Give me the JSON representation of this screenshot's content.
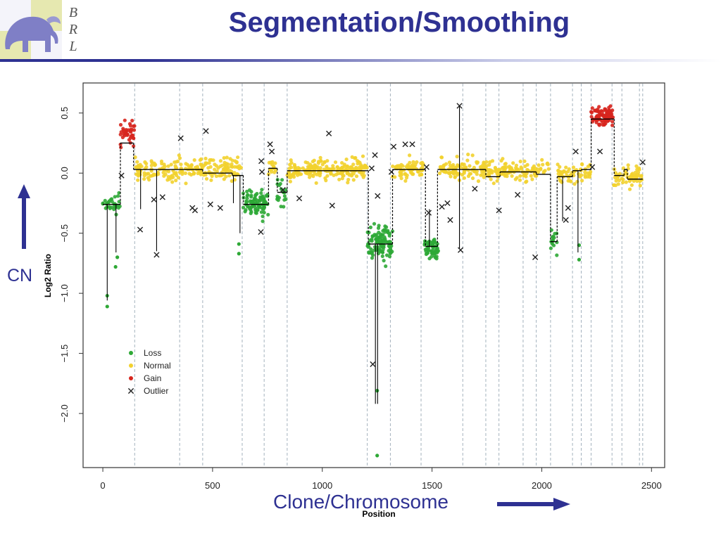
{
  "slide": {
    "title": "Segmentation/Smoothing",
    "logo_text": [
      "B",
      "R",
      "L"
    ],
    "cn_label": "CN",
    "clone_label": "Clone/Chromosome",
    "accent_color": "#2e3192"
  },
  "chart_data": {
    "type": "scatter",
    "xlabel": "Position",
    "ylabel": "Log2 Ratio",
    "xlim": [
      -90,
      2560
    ],
    "ylim": [
      -2.45,
      0.75
    ],
    "xticks": [
      0,
      500,
      1000,
      1500,
      2000,
      2500
    ],
    "yticks": [
      0.5,
      0.0,
      -0.5,
      -1.0,
      -1.5,
      -2.0
    ],
    "xtick_labels": [
      "0",
      "500",
      "1000",
      "1500",
      "2000",
      "2500"
    ],
    "ytick_labels": [
      "0.5",
      "0.0",
      "−0.5",
      "−1.0",
      "−1.5",
      "−2.0"
    ],
    "grid": "vertical dashed chromosome boundaries",
    "legend": {
      "placement": "lower-left",
      "entries": [
        {
          "label": "Loss",
          "color": "#2ea836",
          "marker": "dot"
        },
        {
          "label": "Normal",
          "color": "#f2d12e",
          "marker": "dot"
        },
        {
          "label": "Gain",
          "color": "#d7261e",
          "marker": "dot"
        },
        {
          "label": "Outlier",
          "color": "#222222",
          "marker": "x"
        }
      ]
    },
    "boundaries": [
      145,
      350,
      455,
      635,
      735,
      840,
      1205,
      1310,
      1450,
      1640,
      1745,
      1805,
      1915,
      1975,
      2040,
      2140,
      2180,
      2225,
      2320,
      2365,
      2445,
      2460
    ],
    "segments": [
      {
        "x0": 0,
        "x1": 80,
        "y": -0.26
      },
      {
        "x0": 80,
        "x1": 140,
        "y": 0.25
      },
      {
        "x0": 140,
        "x1": 455,
        "y": 0.03
      },
      {
        "x0": 455,
        "x1": 590,
        "y": 0.0
      },
      {
        "x0": 590,
        "x1": 640,
        "y": -0.02
      },
      {
        "x0": 640,
        "x1": 755,
        "y": -0.26
      },
      {
        "x0": 755,
        "x1": 795,
        "y": 0.04
      },
      {
        "x0": 795,
        "x1": 840,
        "y": -0.16
      },
      {
        "x0": 840,
        "x1": 1210,
        "y": 0.02
      },
      {
        "x0": 1210,
        "x1": 1320,
        "y": -0.59
      },
      {
        "x0": 1320,
        "x1": 1470,
        "y": 0.03
      },
      {
        "x0": 1470,
        "x1": 1525,
        "y": -0.61
      },
      {
        "x0": 1525,
        "x1": 1745,
        "y": 0.03
      },
      {
        "x0": 1745,
        "x1": 1810,
        "y": -0.03
      },
      {
        "x0": 1810,
        "x1": 1975,
        "y": 0.01
      },
      {
        "x0": 1975,
        "x1": 2040,
        "y": -0.01
      },
      {
        "x0": 2040,
        "x1": 2070,
        "y": -0.57
      },
      {
        "x0": 2070,
        "x1": 2140,
        "y": -0.03
      },
      {
        "x0": 2140,
        "x1": 2180,
        "y": 0.02
      },
      {
        "x0": 2180,
        "x1": 2225,
        "y": 0.03
      },
      {
        "x0": 2225,
        "x1": 2330,
        "y": 0.45
      },
      {
        "x0": 2330,
        "x1": 2375,
        "y": -0.02
      },
      {
        "x0": 2375,
        "x1": 2390,
        "y": 0.03
      },
      {
        "x0": 2390,
        "x1": 2460,
        "y": -0.05
      }
    ],
    "spikes": [
      {
        "x": 20,
        "y0": -0.26,
        "y1": -1.06
      },
      {
        "x": 60,
        "y0": -0.26,
        "y1": -0.66
      },
      {
        "x": 172,
        "y0": 0.03,
        "y1": -0.3
      },
      {
        "x": 245,
        "y0": 0.03,
        "y1": -0.65
      },
      {
        "x": 595,
        "y0": -0.02,
        "y1": -0.25
      },
      {
        "x": 625,
        "y0": -0.02,
        "y1": -0.5
      },
      {
        "x": 1242,
        "y0": -0.59,
        "y1": -1.92
      },
      {
        "x": 1252,
        "y0": -0.59,
        "y1": -1.92
      },
      {
        "x": 1488,
        "y0": -0.61,
        "y1": -0.3
      },
      {
        "x": 1625,
        "y0": 0.03,
        "y1": 0.56
      },
      {
        "x": 1625,
        "y0": 0.03,
        "y1": -0.63
      },
      {
        "x": 2095,
        "y0": -0.03,
        "y1": -0.4
      },
      {
        "x": 2165,
        "y0": 0.02,
        "y1": -0.66
      }
    ],
    "regions": [
      {
        "class": "Loss",
        "x0": 0,
        "x1": 80,
        "mean": -0.26,
        "sd": 0.05,
        "n": 30
      },
      {
        "class": "Gain",
        "x0": 80,
        "x1": 145,
        "mean": 0.33,
        "sd": 0.06,
        "n": 40
      },
      {
        "class": "Normal",
        "x0": 145,
        "x1": 630,
        "mean": 0.03,
        "sd": 0.06,
        "n": 220
      },
      {
        "class": "Loss",
        "x0": 640,
        "x1": 755,
        "mean": -0.26,
        "sd": 0.08,
        "n": 90
      },
      {
        "class": "Normal",
        "x0": 755,
        "x1": 790,
        "mean": 0.04,
        "sd": 0.05,
        "n": 15
      },
      {
        "class": "Loss",
        "x0": 790,
        "x1": 835,
        "mean": -0.14,
        "sd": 0.08,
        "n": 20
      },
      {
        "class": "Normal",
        "x0": 840,
        "x1": 1205,
        "mean": 0.03,
        "sd": 0.06,
        "n": 200
      },
      {
        "class": "Loss",
        "x0": 1205,
        "x1": 1320,
        "mean": -0.58,
        "sd": 0.1,
        "n": 110
      },
      {
        "class": "Normal",
        "x0": 1320,
        "x1": 1460,
        "mean": 0.03,
        "sd": 0.06,
        "n": 70
      },
      {
        "class": "Loss",
        "x0": 1465,
        "x1": 1530,
        "mean": -0.62,
        "sd": 0.06,
        "n": 60
      },
      {
        "class": "Normal",
        "x0": 1530,
        "x1": 2035,
        "mean": 0.02,
        "sd": 0.06,
        "n": 220
      },
      {
        "class": "Loss",
        "x0": 2040,
        "x1": 2070,
        "mean": -0.57,
        "sd": 0.08,
        "n": 16
      },
      {
        "class": "Normal",
        "x0": 2070,
        "x1": 2225,
        "mean": 0.0,
        "sd": 0.05,
        "n": 60
      },
      {
        "class": "Gain",
        "x0": 2225,
        "x1": 2325,
        "mean": 0.48,
        "sd": 0.06,
        "n": 100
      },
      {
        "class": "Normal",
        "x0": 2325,
        "x1": 2460,
        "mean": -0.03,
        "sd": 0.06,
        "n": 60
      }
    ],
    "loss_points": [
      {
        "x": 20,
        "y": -1.11
      },
      {
        "x": 20,
        "y": -1.02
      },
      {
        "x": 58,
        "y": -0.78
      },
      {
        "x": 66,
        "y": -0.7
      },
      {
        "x": 620,
        "y": -0.67
      },
      {
        "x": 620,
        "y": -0.59
      },
      {
        "x": 1250,
        "y": -1.81
      },
      {
        "x": 1250,
        "y": -2.35
      },
      {
        "x": 2170,
        "y": -0.72
      },
      {
        "x": 2170,
        "y": -0.6
      }
    ],
    "outliers": [
      {
        "x": 85,
        "y": -0.02
      },
      {
        "x": 170,
        "y": -0.47
      },
      {
        "x": 233,
        "y": -0.22
      },
      {
        "x": 245,
        "y": -0.68
      },
      {
        "x": 272,
        "y": -0.2
      },
      {
        "x": 355,
        "y": 0.29
      },
      {
        "x": 408,
        "y": -0.29
      },
      {
        "x": 420,
        "y": -0.31
      },
      {
        "x": 470,
        "y": 0.35
      },
      {
        "x": 490,
        "y": -0.26
      },
      {
        "x": 535,
        "y": -0.29
      },
      {
        "x": 720,
        "y": -0.49
      },
      {
        "x": 722,
        "y": 0.1
      },
      {
        "x": 725,
        "y": 0.01
      },
      {
        "x": 762,
        "y": 0.24
      },
      {
        "x": 770,
        "y": 0.18
      },
      {
        "x": 820,
        "y": -0.14
      },
      {
        "x": 895,
        "y": -0.21
      },
      {
        "x": 1030,
        "y": 0.33
      },
      {
        "x": 1045,
        "y": -0.27
      },
      {
        "x": 1225,
        "y": 0.04
      },
      {
        "x": 1230,
        "y": -1.59
      },
      {
        "x": 1240,
        "y": 0.15
      },
      {
        "x": 1252,
        "y": -0.19
      },
      {
        "x": 1315,
        "y": 0.01
      },
      {
        "x": 1325,
        "y": 0.22
      },
      {
        "x": 1378,
        "y": 0.24
      },
      {
        "x": 1410,
        "y": 0.24
      },
      {
        "x": 1475,
        "y": 0.05
      },
      {
        "x": 1485,
        "y": -0.33
      },
      {
        "x": 1545,
        "y": -0.28
      },
      {
        "x": 1570,
        "y": -0.25
      },
      {
        "x": 1583,
        "y": -0.39
      },
      {
        "x": 1625,
        "y": 0.56
      },
      {
        "x": 1630,
        "y": -0.64
      },
      {
        "x": 1695,
        "y": -0.13
      },
      {
        "x": 1805,
        "y": -0.31
      },
      {
        "x": 1890,
        "y": -0.18
      },
      {
        "x": 1970,
        "y": -0.7
      },
      {
        "x": 2110,
        "y": -0.39
      },
      {
        "x": 2120,
        "y": -0.29
      },
      {
        "x": 2155,
        "y": 0.18
      },
      {
        "x": 2230,
        "y": 0.05
      },
      {
        "x": 2265,
        "y": 0.18
      },
      {
        "x": 2460,
        "y": 0.09
      }
    ],
    "colors": {
      "Loss": "#2ea836",
      "Normal": "#f2d12e",
      "Gain": "#d7261e",
      "Outlier": "#222222",
      "Segment": "#000000",
      "Boundary": "#9aaab6"
    }
  }
}
